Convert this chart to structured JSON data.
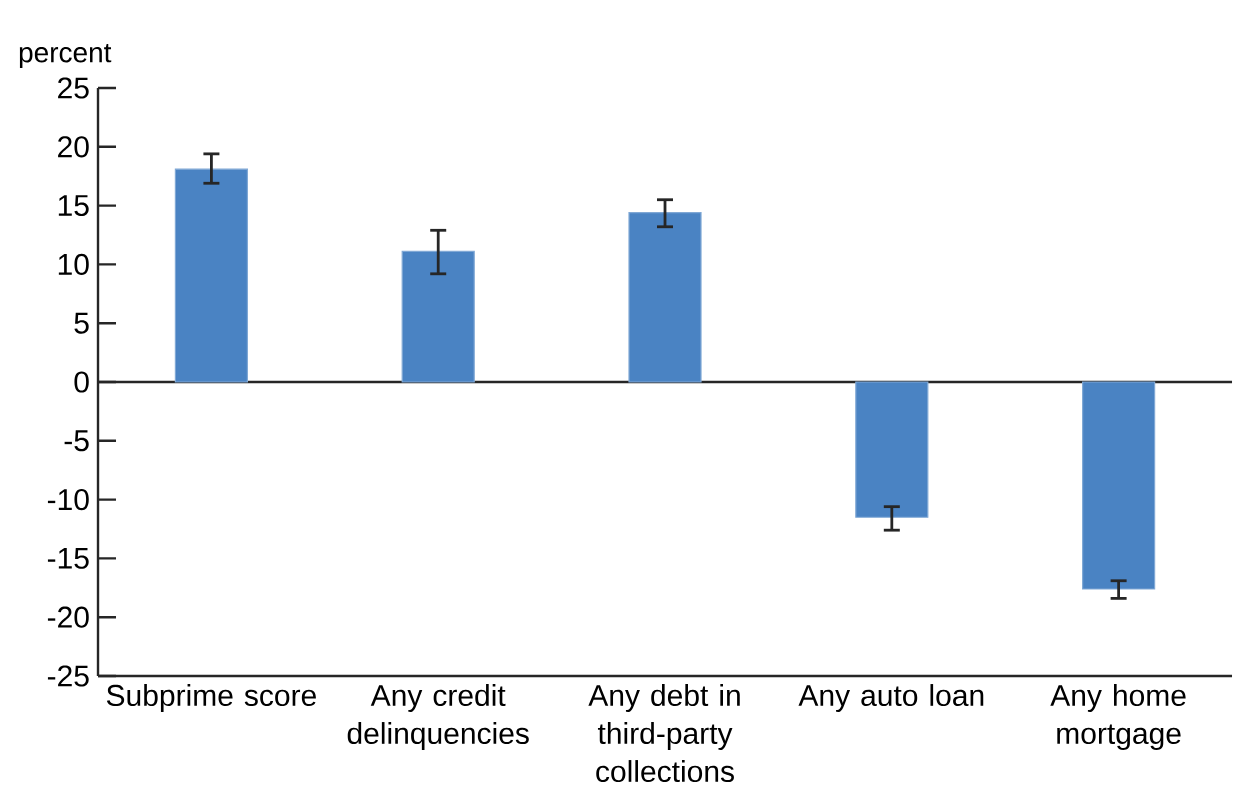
{
  "chart_data": {
    "type": "bar",
    "ylabel": "percent",
    "categories": [
      "Subprime score",
      "Any credit delinquencies",
      "Any debt in third-party collections",
      "Any auto loan",
      "Any home mortgage"
    ],
    "values": [
      18.1,
      11.1,
      14.4,
      -11.5,
      -17.6
    ],
    "errors": [
      [
        16.9,
        19.4
      ],
      [
        9.2,
        12.9
      ],
      [
        13.2,
        15.5
      ],
      [
        -12.6,
        -10.6
      ],
      [
        -18.4,
        -16.9
      ]
    ],
    "color": "#4a83c3",
    "ylim": [
      -25,
      25
    ],
    "yticks": [
      -25,
      -20,
      -15,
      -10,
      -5,
      0,
      5,
      10,
      15,
      20,
      25
    ]
  }
}
